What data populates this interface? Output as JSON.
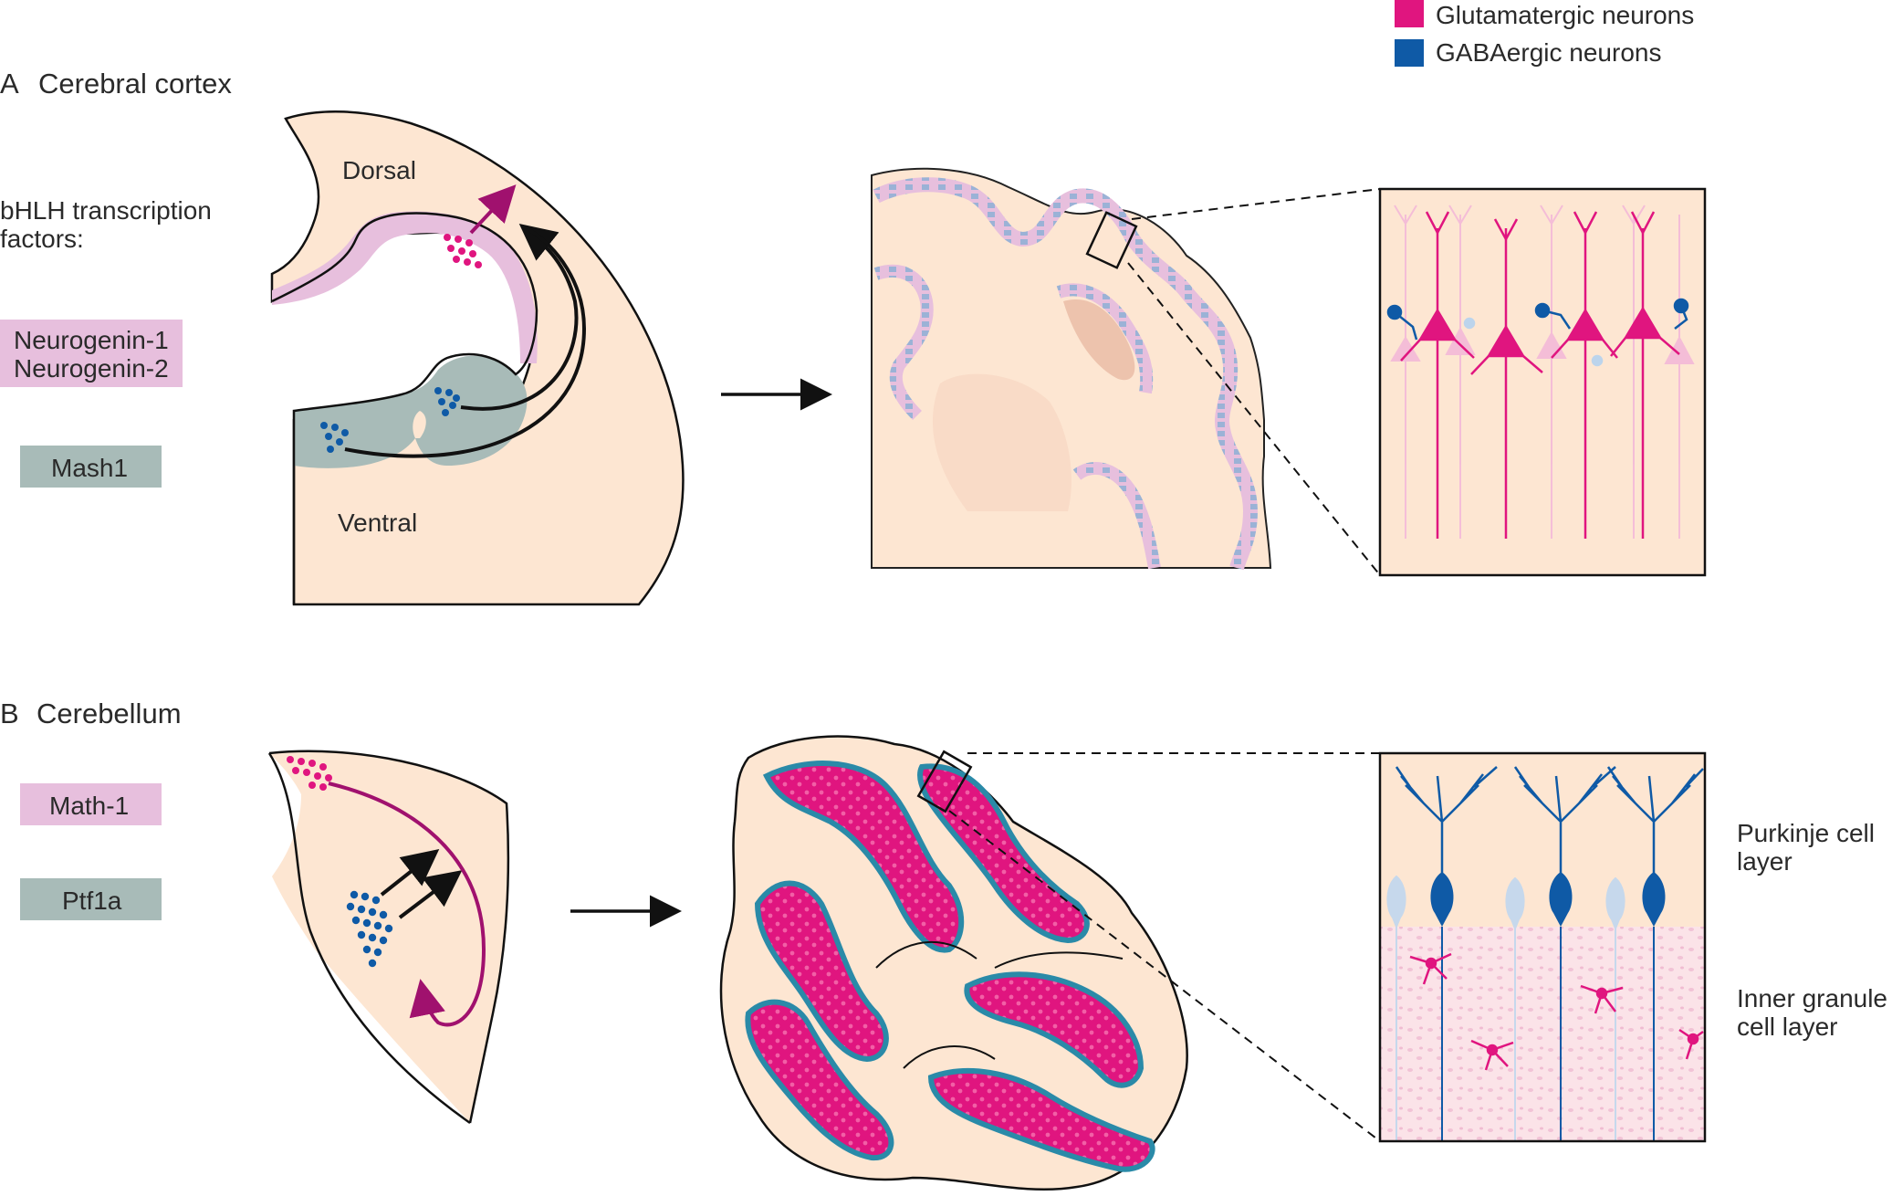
{
  "legend": {
    "items": [
      {
        "label": "Glutamatergic neurons",
        "color": "#e0157f"
      },
      {
        "label": "GABAergic neurons",
        "color": "#0f5aa6"
      }
    ]
  },
  "panel_a": {
    "letter": "A",
    "title": "Cerebral cortex",
    "factors_heading_line1": "bHLH transcription",
    "factors_heading_line2": "factors:",
    "factor_dorsal_line1": "Neurogenin-1",
    "factor_dorsal_line2": "Neurogenin-2",
    "factor_ventral": "Mash1",
    "dorsal_label": "Dorsal",
    "ventral_label": "Ventral"
  },
  "panel_b": {
    "letter": "B",
    "title": "Cerebellum",
    "factor_upper": "Math-1",
    "factor_lower": "Ptf1a",
    "purkinje_line1": "Purkinje cell",
    "purkinje_line2": "layer",
    "granule_line1": "Inner granule",
    "granule_line2": "cell layer"
  },
  "colors": {
    "tissue": "#fde6d2",
    "dorsal_factor": "#e7bfdd",
    "ventral_factor": "#a8bbb8",
    "glutamatergic": "#e0157f",
    "gabaergic": "#0f5aa6",
    "arrow_purple": "#a0116e",
    "outline": "#111111"
  }
}
